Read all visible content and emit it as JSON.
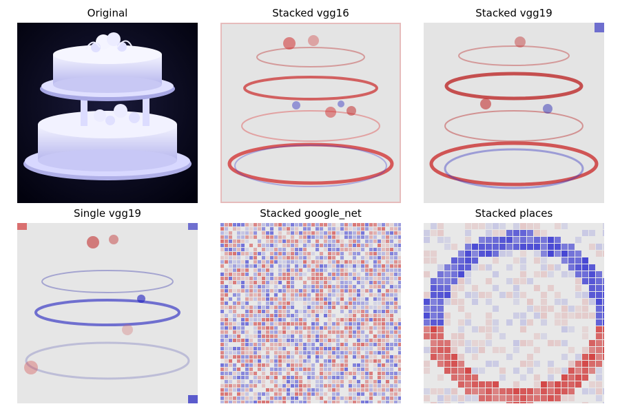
{
  "figure": {
    "panels": [
      {
        "title": "Original",
        "kind": "photo"
      },
      {
        "title": "Stacked vgg16",
        "kind": "heatmap-smooth"
      },
      {
        "title": "Stacked vgg19",
        "kind": "heatmap-smooth"
      },
      {
        "title": "Single vgg19",
        "kind": "heatmap-smooth-blue"
      },
      {
        "title": "Stacked google_net",
        "kind": "heatmap-noisy"
      },
      {
        "title": "Stacked places",
        "kind": "heatmap-blocky"
      }
    ],
    "colors": {
      "positive": "#cc0000",
      "negative": "#0000cc",
      "neutral": "#e6e6e6",
      "photo_background": "#05051a",
      "cake": "#e8e8ff"
    }
  }
}
